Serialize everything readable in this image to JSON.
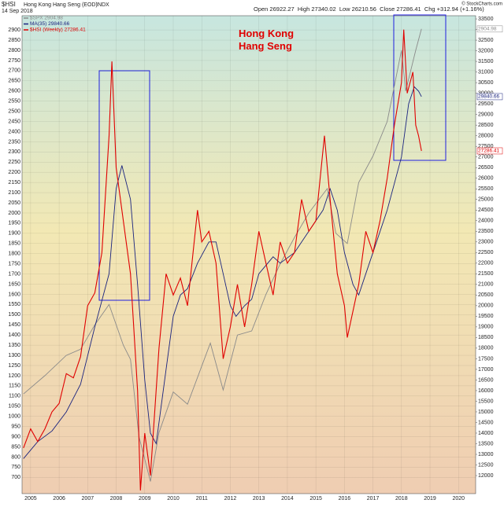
{
  "header": {
    "symbol": "$HSI",
    "name": "Hong Kong Hang Seng (EOD)",
    "exchange": "INDX",
    "date": "14 Sep 2018",
    "quote": "Open 26922.27  High 27340.02  Low 26210.56  Close 27286.41  Chg +312.94 (+1.16%)",
    "credit": "© StockCharts.com"
  },
  "chart_data": {
    "type": "line",
    "title": "Hong Kong\nHang Seng",
    "grid": true,
    "xlim": [
      2004.7,
      2020.6
    ],
    "xticks": [
      2005,
      2006,
      2007,
      2008,
      2009,
      2010,
      2011,
      2012,
      2013,
      2014,
      2015,
      2016,
      2017,
      2018,
      2019,
      2020
    ],
    "ylim": [
      620,
      2970
    ],
    "yticks": [
      700,
      750,
      800,
      850,
      900,
      950,
      1000,
      1050,
      1100,
      1150,
      1200,
      1250,
      1300,
      1350,
      1400,
      1450,
      1500,
      1550,
      1600,
      1650,
      1700,
      1750,
      1800,
      1850,
      1900,
      1950,
      2000,
      2050,
      2100,
      2150,
      2200,
      2250,
      2300,
      2350,
      2400,
      2450,
      2500,
      2550,
      2600,
      2650,
      2700,
      2750,
      2800,
      2850,
      2900
    ],
    "y2lim": [
      11150,
      33650
    ],
    "y2ticks": [
      12000,
      12500,
      13000,
      13500,
      14000,
      14500,
      15000,
      15500,
      16000,
      16500,
      17000,
      17500,
      18000,
      18500,
      19000,
      19500,
      20000,
      20500,
      21000,
      21500,
      22000,
      22500,
      23000,
      23500,
      24000,
      24500,
      25000,
      25500,
      26000,
      26500,
      27000,
      27500,
      28000,
      28500,
      29000,
      29500,
      30000,
      30500,
      31000,
      31500,
      32000,
      32500,
      33000,
      33500
    ],
    "series": [
      {
        "name": "$SPX 2904.98",
        "color": "#8a8a8a",
        "axis": "y",
        "end_label": "2904.98",
        "x": [
          2004.75,
          2005.5,
          2006.25,
          2006.75,
          2007.25,
          2007.75,
          2008.25,
          2008.5,
          2008.8,
          2009.2,
          2009.5,
          2010.0,
          2010.5,
          2011.3,
          2011.75,
          2012.25,
          2012.75,
          2013.25,
          2013.75,
          2014.25,
          2014.75,
          2015.4,
          2015.7,
          2016.1,
          2016.5,
          2017.0,
          2017.5,
          2018.0,
          2018.15,
          2018.5,
          2018.7
        ],
        "values": [
          1110,
          1200,
          1300,
          1330,
          1450,
          1550,
          1350,
          1280,
          900,
          680,
          920,
          1120,
          1060,
          1360,
          1130,
          1400,
          1420,
          1600,
          1750,
          1880,
          2000,
          2120,
          1900,
          1850,
          2150,
          2280,
          2450,
          2800,
          2600,
          2800,
          2904.98
        ]
      },
      {
        "name": "MA(35) 29840.66",
        "color": "#1a237e",
        "axis": "y2",
        "end_label": "29840.66",
        "x": [
          2004.75,
          2005.25,
          2005.75,
          2006.25,
          2006.75,
          2007.25,
          2007.75,
          2008.0,
          2008.2,
          2008.5,
          2008.75,
          2009.0,
          2009.2,
          2009.4,
          2009.75,
          2010.0,
          2010.25,
          2010.5,
          2010.85,
          2011.25,
          2011.5,
          2011.75,
          2012.0,
          2012.2,
          2012.5,
          2012.75,
          2013.0,
          2013.5,
          2013.75,
          2014.25,
          2014.75,
          2015.25,
          2015.5,
          2015.75,
          2016.0,
          2016.3,
          2016.5,
          2016.75,
          2017.0,
          2017.5,
          2018.0,
          2018.25,
          2018.45,
          2018.6,
          2018.7
        ],
        "values": [
          12800,
          13600,
          14100,
          15000,
          16300,
          19000,
          21500,
          25500,
          26600,
          25000,
          21000,
          16500,
          14000,
          13500,
          17000,
          19500,
          20500,
          20800,
          22000,
          23000,
          23000,
          21500,
          20000,
          19500,
          20000,
          20300,
          21500,
          22300,
          22000,
          22500,
          23500,
          24500,
          25500,
          24500,
          22500,
          21000,
          20500,
          21500,
          22500,
          24500,
          27000,
          29500,
          30300,
          30100,
          29840.66
        ]
      },
      {
        "name": "$HSI (Weekly) 27286.41",
        "color": "#e00000",
        "axis": "y2",
        "end_label": "27286.41",
        "x": [
          2004.75,
          2005.0,
          2005.25,
          2005.5,
          2005.75,
          2006.0,
          2006.25,
          2006.5,
          2006.75,
          2007.0,
          2007.25,
          2007.5,
          2007.75,
          2007.85,
          2008.0,
          2008.25,
          2008.5,
          2008.75,
          2008.85,
          2009.0,
          2009.2,
          2009.5,
          2009.75,
          2010.0,
          2010.25,
          2010.5,
          2010.85,
          2011.0,
          2011.25,
          2011.5,
          2011.75,
          2012.0,
          2012.25,
          2012.5,
          2012.75,
          2013.0,
          2013.25,
          2013.5,
          2013.75,
          2014.0,
          2014.25,
          2014.5,
          2014.75,
          2015.0,
          2015.3,
          2015.5,
          2015.75,
          2016.0,
          2016.1,
          2016.5,
          2016.75,
          2017.0,
          2017.25,
          2017.5,
          2017.75,
          2018.0,
          2018.08,
          2018.2,
          2018.4,
          2018.5,
          2018.6,
          2018.7
        ],
        "values": [
          13300,
          14200,
          13600,
          14200,
          15000,
          15400,
          16800,
          16600,
          17600,
          20000,
          20600,
          22500,
          28000,
          31500,
          26500,
          24000,
          21500,
          16000,
          11300,
          14000,
          12000,
          18000,
          21500,
          20500,
          21300,
          20000,
          24500,
          23000,
          23500,
          22000,
          17500,
          19000,
          21000,
          19000,
          21000,
          23500,
          22000,
          20500,
          23000,
          22000,
          22500,
          25000,
          23500,
          24000,
          28000,
          25000,
          21500,
          20000,
          18500,
          21000,
          23500,
          22500,
          24000,
          26000,
          28500,
          30500,
          33000,
          30000,
          31000,
          28500,
          28000,
          27286.41
        ]
      }
    ]
  }
}
